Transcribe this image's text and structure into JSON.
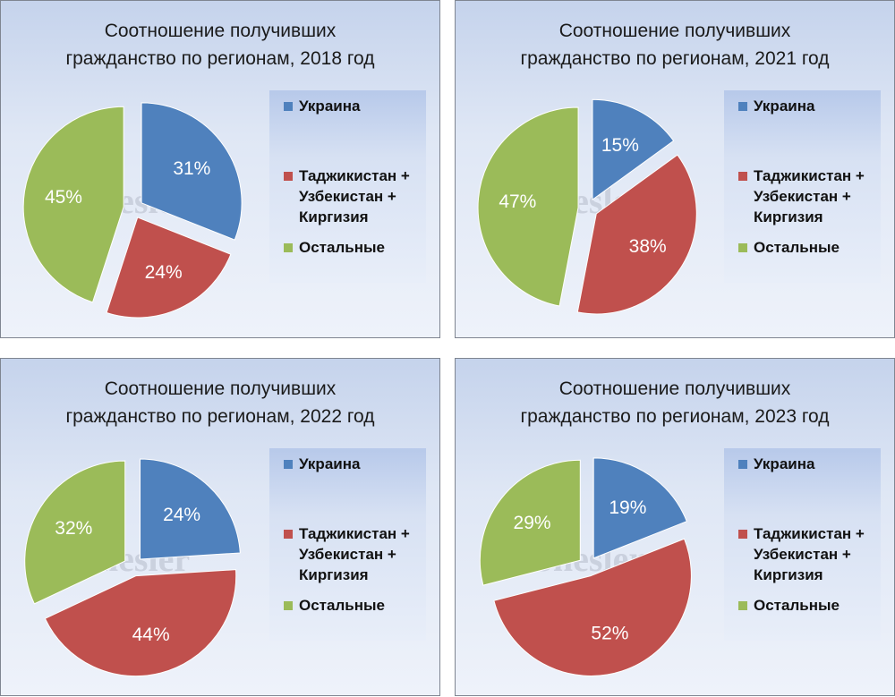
{
  "chart_data": [
    {
      "type": "pie",
      "title": "Соотношение получивших гражданство по регионам, 2018 год",
      "title_lines": [
        "Соотношение получивших",
        "гражданство по регионам, 2018 год"
      ],
      "categories": [
        "Украина",
        "Таджикистан + Узбекистан + Киргизия",
        "Остальные"
      ],
      "values": [
        31,
        24,
        45
      ],
      "value_labels": [
        "31%",
        "24%",
        "45%"
      ],
      "legend_position": "right"
    },
    {
      "type": "pie",
      "title": "Соотношение получивших гражданство по регионам, 2021 год",
      "title_lines": [
        "Соотношение получивших",
        "гражданство по регионам, 2021 год"
      ],
      "categories": [
        "Украина",
        "Таджикистан + Узбекистан + Киргизия",
        "Остальные"
      ],
      "values": [
        15,
        38,
        47
      ],
      "value_labels": [
        "15%",
        "38%",
        "47%"
      ],
      "legend_position": "right"
    },
    {
      "type": "pie",
      "title": "Соотношение получивших гражданство по регионам, 2022 год",
      "title_lines": [
        "Соотношение получивших",
        "гражданство по регионам, 2022 год"
      ],
      "categories": [
        "Украина",
        "Таджикистан + Узбекистан + Киргизия",
        "Остальные"
      ],
      "values": [
        24,
        44,
        32
      ],
      "value_labels": [
        "24%",
        "44%",
        "32%"
      ],
      "legend_position": "right"
    },
    {
      "type": "pie",
      "title": "Соотношение получивших гражданство по регионам, 2023 год",
      "title_lines": [
        "Соотношение получивших",
        "гражданство по регионам, 2023 год"
      ],
      "categories": [
        "Украина",
        "Таджикистан + Узбекистан + Киргизия",
        "Остальные"
      ],
      "values": [
        19,
        52,
        29
      ],
      "value_labels": [
        "19%",
        "52%",
        "29%"
      ],
      "legend_position": "right"
    }
  ],
  "legend": {
    "items": [
      {
        "lines": [
          "Украина"
        ],
        "color": "#4f81bd"
      },
      {
        "lines": [
          "Таджикистан +",
          "Узбекистан +",
          "Киргизия"
        ],
        "color": "#c0504d"
      },
      {
        "lines": [
          "Остальные"
        ],
        "color": "#9bbb59"
      }
    ]
  },
  "colors": [
    "#4f81bd",
    "#c0504d",
    "#9bbb59"
  ],
  "watermark": "L.Shesler"
}
